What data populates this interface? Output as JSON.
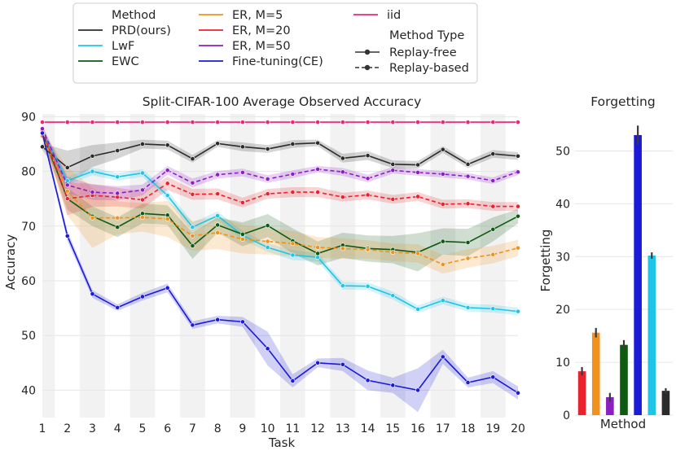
{
  "legend": {
    "method_header": "Method",
    "type_header": "Method Type",
    "methods": [
      {
        "key": "prd",
        "label": "PRD(ours)",
        "color": "#2b2b2b"
      },
      {
        "key": "lwf",
        "label": "LwF",
        "color": "#1fc4e6"
      },
      {
        "key": "ewc",
        "label": "EWC",
        "color": "#0e5a12"
      },
      {
        "key": "er5",
        "label": "ER, M=5",
        "color": "#f0921e"
      },
      {
        "key": "er20",
        "label": "ER, M=20",
        "color": "#e8232d"
      },
      {
        "key": "er50",
        "label": "ER, M=50",
        "color": "#8c1fc4"
      },
      {
        "key": "ft",
        "label": "Fine-tuning(CE)",
        "color": "#1a1ad8"
      },
      {
        "key": "iid",
        "label": "iid",
        "color": "#e8287a"
      }
    ],
    "types": [
      {
        "label": "Replay-free",
        "style": "solid"
      },
      {
        "label": "Replay-based",
        "style": "dashed"
      }
    ]
  },
  "chart_data": [
    {
      "type": "line",
      "title": "Split-CIFAR-100 Average Observed Accuracy",
      "xlabel": "Task",
      "ylabel": "Accuracy",
      "x": [
        1,
        2,
        3,
        4,
        5,
        6,
        7,
        8,
        9,
        10,
        11,
        12,
        13,
        14,
        15,
        16,
        17,
        18,
        19,
        20
      ],
      "xlim": [
        1,
        20
      ],
      "ylim": [
        35,
        90.5
      ],
      "yticks": [
        40,
        50,
        60,
        70,
        80,
        90
      ],
      "shaded_tasks": [
        1,
        3,
        5,
        7,
        9,
        11,
        13,
        15,
        17,
        19
      ],
      "series": [
        {
          "name": "iid",
          "key": "iid",
          "style": "solid",
          "values": [
            89,
            89,
            89,
            89,
            89,
            89,
            89,
            89,
            89,
            89,
            89,
            89,
            89,
            89,
            89,
            89,
            89,
            89,
            89,
            89
          ],
          "lower": [
            88.8,
            88.8,
            88.8,
            88.8,
            88.8,
            88.8,
            88.8,
            88.8,
            88.8,
            88.8,
            88.8,
            88.8,
            88.8,
            88.8,
            88.8,
            88.8,
            88.8,
            88.8,
            88.8,
            88.8
          ],
          "upper": [
            89.2,
            89.2,
            89.2,
            89.2,
            89.2,
            89.2,
            89.2,
            89.2,
            89.2,
            89.2,
            89.2,
            89.2,
            89.2,
            89.2,
            89.2,
            89.2,
            89.2,
            89.2,
            89.2,
            89.2
          ]
        },
        {
          "name": "PRD(ours)",
          "key": "prd",
          "style": "solid",
          "values": [
            84.5,
            80.7,
            82.8,
            83.8,
            85.0,
            84.8,
            82.3,
            85.1,
            84.5,
            84.1,
            85.0,
            85.2,
            82.4,
            82.9,
            81.3,
            81.2,
            84.0,
            81.3,
            83.2,
            82.8
          ],
          "lower": [
            83.9,
            77.6,
            80.8,
            82.3,
            84.2,
            84.0,
            81.6,
            84.5,
            83.7,
            83.4,
            84.3,
            84.6,
            81.6,
            82.1,
            80.6,
            80.5,
            83.4,
            80.6,
            82.5,
            82.1
          ],
          "upper": [
            85.1,
            83.8,
            84.8,
            85.3,
            85.8,
            85.6,
            83.0,
            85.7,
            85.3,
            84.8,
            85.7,
            85.8,
            83.2,
            83.7,
            82.0,
            81.9,
            84.6,
            82.0,
            83.9,
            83.5
          ]
        },
        {
          "name": "LwF",
          "key": "lwf",
          "style": "solid",
          "values": [
            87.4,
            78.3,
            80.0,
            79.0,
            79.7,
            75.6,
            69.8,
            71.9,
            68.3,
            66.1,
            64.7,
            64.3,
            59.1,
            59.0,
            57.3,
            54.8,
            56.4,
            55.1,
            54.9,
            54.4
          ],
          "lower": [
            86.8,
            77.5,
            79.3,
            78.3,
            79.0,
            74.7,
            68.9,
            71.1,
            67.5,
            65.3,
            63.8,
            63.5,
            58.4,
            58.3,
            56.6,
            54.1,
            55.7,
            54.4,
            54.2,
            53.7
          ],
          "upper": [
            88.0,
            79.1,
            80.7,
            79.7,
            80.4,
            76.5,
            70.7,
            72.7,
            69.1,
            66.9,
            65.6,
            65.1,
            59.8,
            59.7,
            58.0,
            55.5,
            57.1,
            55.8,
            55.6,
            55.1
          ]
        },
        {
          "name": "EWC",
          "key": "ewc",
          "style": "solid",
          "values": [
            87.0,
            75.0,
            71.8,
            69.8,
            72.3,
            72.0,
            66.4,
            70.2,
            68.5,
            70.1,
            67.3,
            65.0,
            66.5,
            65.9,
            65.7,
            65.2,
            67.2,
            67.0,
            69.4,
            71.8
          ],
          "lower": [
            86.3,
            73.0,
            70.0,
            68.0,
            70.5,
            70.2,
            64.0,
            68.8,
            66.3,
            68.0,
            65.0,
            62.8,
            64.2,
            63.5,
            63.2,
            61.7,
            64.8,
            64.5,
            67.2,
            70.5
          ],
          "upper": [
            87.7,
            77.0,
            73.6,
            71.6,
            74.1,
            73.8,
            68.8,
            71.6,
            70.7,
            72.2,
            69.6,
            67.2,
            68.8,
            68.3,
            68.2,
            68.7,
            69.6,
            69.5,
            71.6,
            73.1
          ]
        },
        {
          "name": "ER, M=5",
          "key": "er5",
          "style": "dashed",
          "values": [
            86.5,
            76.4,
            71.5,
            71.5,
            71.6,
            71.3,
            68.2,
            68.8,
            67.6,
            67.2,
            66.8,
            66.1,
            65.9,
            65.7,
            65.2,
            65.0,
            63.0,
            64.1,
            64.8,
            66.0
          ],
          "lower": [
            85.8,
            72.0,
            66.0,
            68.5,
            69.0,
            68.0,
            65.5,
            65.8,
            65.0,
            64.8,
            64.5,
            64.2,
            64.0,
            64.0,
            63.6,
            63.3,
            61.3,
            62.4,
            63.2,
            64.5
          ],
          "upper": [
            87.2,
            80.8,
            77.0,
            74.5,
            74.2,
            74.6,
            70.9,
            71.8,
            70.2,
            69.6,
            69.1,
            68.0,
            67.8,
            67.4,
            66.8,
            66.7,
            64.7,
            65.8,
            66.4,
            67.5
          ]
        },
        {
          "name": "ER, M=20",
          "key": "er20",
          "style": "dashed",
          "values": [
            87.5,
            75.0,
            75.6,
            75.3,
            74.8,
            77.8,
            75.8,
            75.9,
            74.3,
            75.9,
            76.2,
            76.2,
            75.3,
            75.7,
            74.9,
            75.4,
            74.0,
            74.1,
            73.6,
            73.6
          ],
          "lower": [
            86.8,
            72.0,
            73.5,
            73.6,
            73.2,
            76.6,
            74.8,
            74.9,
            73.4,
            75.0,
            75.3,
            75.3,
            74.5,
            74.9,
            74.1,
            74.6,
            73.2,
            73.3,
            72.8,
            72.8
          ],
          "upper": [
            88.2,
            78.0,
            77.7,
            77.0,
            76.4,
            79.0,
            76.8,
            76.9,
            75.2,
            76.8,
            77.1,
            77.1,
            76.1,
            76.5,
            75.7,
            76.2,
            74.8,
            74.9,
            74.4,
            74.4
          ]
        },
        {
          "name": "ER, M=50",
          "key": "er50",
          "style": "dashed",
          "values": [
            87.8,
            77.5,
            76.2,
            76.0,
            76.6,
            80.2,
            77.9,
            79.4,
            79.8,
            78.6,
            79.5,
            80.4,
            79.9,
            78.7,
            80.2,
            79.8,
            79.5,
            79.1,
            78.3,
            79.9
          ],
          "lower": [
            87.2,
            76.0,
            74.8,
            74.7,
            75.6,
            79.4,
            77.1,
            78.7,
            79.1,
            77.9,
            78.8,
            79.8,
            79.2,
            78.0,
            79.6,
            79.2,
            78.9,
            78.5,
            77.7,
            79.3
          ],
          "upper": [
            88.4,
            79.0,
            77.6,
            77.3,
            77.6,
            81.0,
            78.7,
            80.1,
            80.5,
            79.3,
            80.2,
            81.0,
            80.6,
            79.4,
            80.8,
            80.4,
            80.1,
            79.7,
            78.9,
            80.5
          ]
        },
        {
          "name": "Fine-tuning(CE)",
          "key": "ft",
          "style": "solid",
          "values": [
            87.0,
            68.2,
            57.6,
            55.1,
            57.1,
            58.7,
            51.9,
            52.9,
            52.5,
            47.6,
            41.7,
            45.0,
            44.7,
            41.8,
            40.9,
            40.0,
            46.1,
            41.4,
            42.4,
            39.5
          ],
          "lower": [
            86.4,
            67.3,
            56.9,
            54.5,
            56.4,
            57.9,
            51.2,
            52.2,
            51.6,
            44.5,
            40.5,
            44.2,
            43.5,
            40.0,
            39.5,
            36.0,
            44.8,
            40.5,
            41.3,
            38.3
          ],
          "upper": [
            87.6,
            69.1,
            58.3,
            55.7,
            57.8,
            59.5,
            52.6,
            53.6,
            53.4,
            50.7,
            42.9,
            45.8,
            45.9,
            43.6,
            42.3,
            44.0,
            47.4,
            42.3,
            43.5,
            40.7
          ]
        }
      ]
    },
    {
      "type": "bar",
      "title": "Forgetting",
      "xlabel": "Method",
      "ylabel": "Forgetting",
      "ylim": [
        0,
        57
      ],
      "yticks": [
        0,
        10,
        20,
        30,
        40,
        50
      ],
      "bars": [
        {
          "key": "er20",
          "value": 8.3,
          "err": 0.8
        },
        {
          "key": "er5",
          "value": 15.6,
          "err": 0.9
        },
        {
          "key": "er50",
          "value": 3.4,
          "err": 0.8
        },
        {
          "key": "ewc",
          "value": 13.3,
          "err": 0.9
        },
        {
          "key": "ft",
          "value": 53.0,
          "err": 1.8
        },
        {
          "key": "lwf",
          "value": 30.2,
          "err": 0.6
        },
        {
          "key": "prd",
          "value": 4.6,
          "err": 0.5
        }
      ]
    }
  ]
}
